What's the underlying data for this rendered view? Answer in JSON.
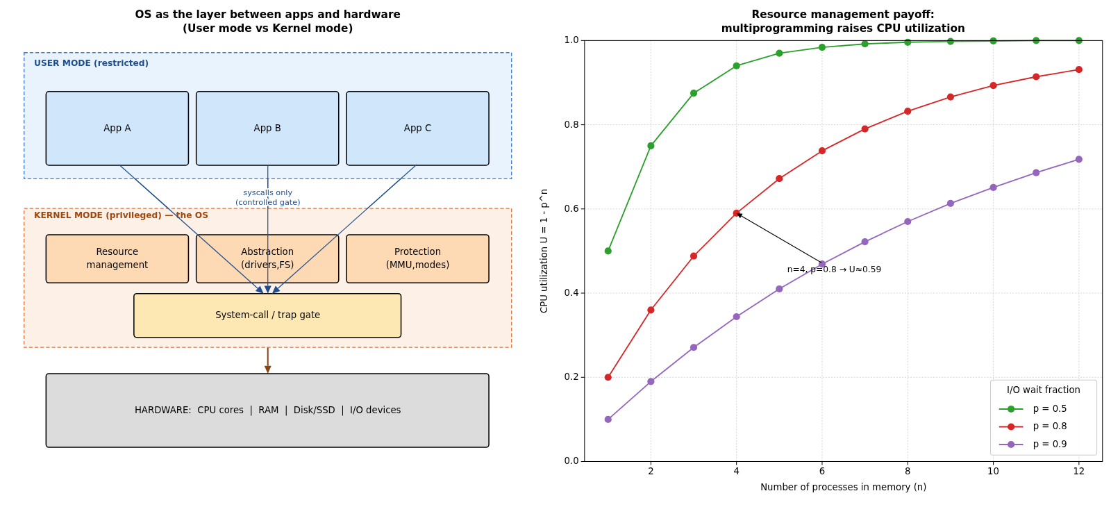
{
  "chart_data": [
    {
      "type": "other",
      "title": "OS as the layer between apps and hardware\n(User mode vs Kernel mode)",
      "annotations": [
        "USER MODE (restricted)",
        "App A",
        "App B",
        "App C",
        "syscalls only\n(controlled gate)",
        "KERNEL MODE (privileged) — the OS",
        "Resource\nmanagement",
        "Abstraction\n(drivers,FS)",
        "Protection\n(MMU,modes)",
        "System-call / trap gate",
        "HARDWARE:  CPU cores  |  RAM  |  Disk/SSD  |  I/O devices"
      ]
    },
    {
      "type": "line",
      "title": "Resource management payoff:\nmultiprogramming raises CPU utilization",
      "xlabel": "Number of processes in memory  (n)",
      "ylabel": "CPU utilization  U = 1 - p^n",
      "legend_title": "I/O wait fraction",
      "legend": "bottom right",
      "grid": true,
      "marker": "circle",
      "line_style": "solid",
      "x": [
        1,
        2,
        3,
        4,
        5,
        6,
        7,
        8,
        9,
        10,
        11,
        12
      ],
      "xlim": [
        0.45,
        12.55
      ],
      "xticks": [
        2,
        4,
        6,
        8,
        10,
        12
      ],
      "ylim": [
        0,
        1
      ],
      "yticks": [
        {
          "value": 0,
          "label": "0.0"
        },
        0.2,
        0.4,
        0.6,
        0.8,
        {
          "value": 1,
          "label": "1.0"
        }
      ],
      "series": [
        {
          "name": "p = 0.5",
          "color": "#2ca02c",
          "values": [
            0.5,
            0.75,
            0.875,
            0.94,
            0.97,
            0.984,
            0.992,
            0.996,
            0.998,
            0.999,
            1.0,
            1.0
          ]
        },
        {
          "name": "p = 0.8",
          "color": "#d62728",
          "values": [
            0.2,
            0.36,
            0.488,
            0.59,
            0.672,
            0.738,
            0.79,
            0.832,
            0.866,
            0.893,
            0.914,
            0.931
          ]
        },
        {
          "name": "p = 0.9",
          "color": "#9467bd",
          "values": [
            0.1,
            0.19,
            0.271,
            0.344,
            0.41,
            0.469,
            0.522,
            0.57,
            0.613,
            0.651,
            0.686,
            0.718
          ]
        }
      ],
      "annotations": [
        {
          "text": "n=4, p=0.8 → U≈0.59",
          "x": 4,
          "y": 0.59
        }
      ]
    }
  ]
}
